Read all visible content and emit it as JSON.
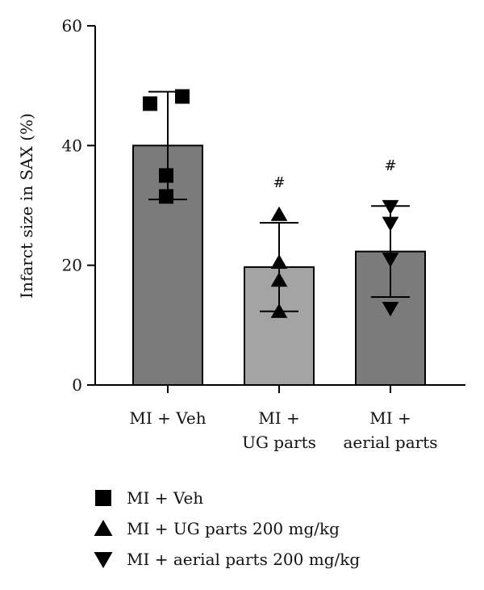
{
  "chart_data": {
    "type": "bar",
    "title": "",
    "xlabel": "",
    "ylabel": "Infarct size in SAX (%)",
    "ylim": [
      0,
      60
    ],
    "yticks": [
      0,
      20,
      40,
      60
    ],
    "grid": false,
    "legend_position": "bottom-left",
    "categories": [
      {
        "lines": [
          "MI + Veh"
        ]
      },
      {
        "lines": [
          "MI +",
          "UG parts"
        ]
      },
      {
        "lines": [
          "MI +",
          "aerial parts"
        ]
      }
    ],
    "bars": [
      {
        "value": 40,
        "error": 9.0,
        "color": "#7b7b7b",
        "marker": "square",
        "points": [
          47,
          48.2,
          35,
          31.5
        ],
        "significance": ""
      },
      {
        "value": 19.7,
        "error": 7.4,
        "color": "#a4a4a4",
        "marker": "triangle-up",
        "points": [
          28.5,
          20.5,
          17.5,
          12.3
        ],
        "significance": "#"
      },
      {
        "value": 22.3,
        "error": 7.6,
        "color": "#7b7b7b",
        "marker": "triangle-down",
        "points": [
          29.8,
          27.0,
          21.0,
          12.8
        ],
        "significance": "#"
      }
    ],
    "legend": [
      {
        "marker": "square",
        "label": "MI + Veh"
      },
      {
        "marker": "triangle-up",
        "label": "MI + UG parts 200 mg/kg"
      },
      {
        "marker": "triangle-down",
        "label": "MI + aerial parts 200 mg/kg"
      }
    ]
  }
}
